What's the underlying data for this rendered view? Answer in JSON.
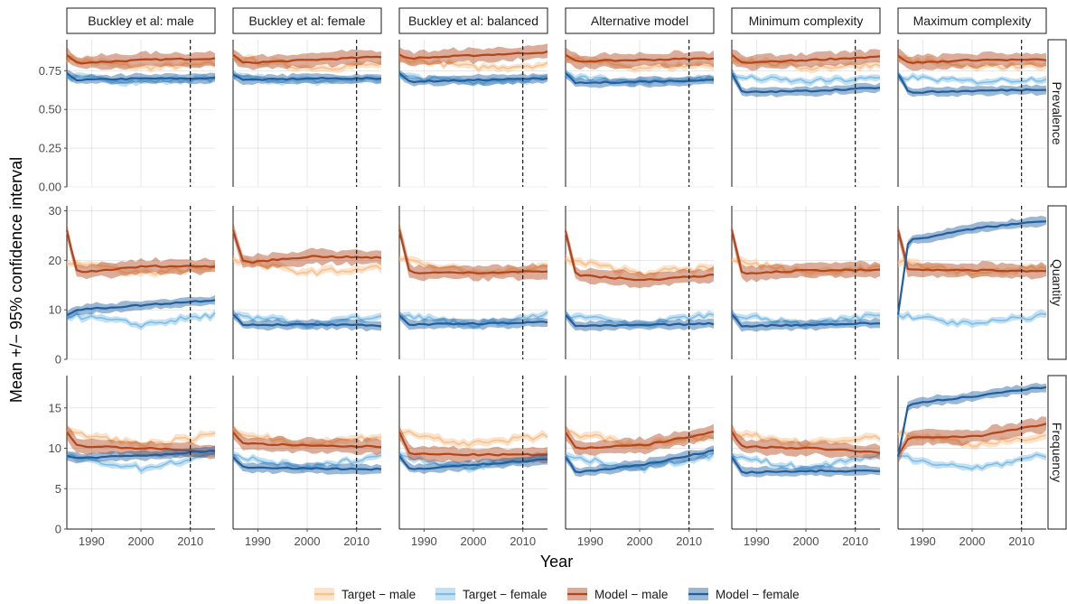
{
  "figure": {
    "ylabel": "Mean +/− 95% confidence interval",
    "xlabel": "Year"
  },
  "colors": {
    "target_male": "#f9c08b",
    "target_female": "#7dbde6",
    "model_male": "#b2461a",
    "model_female": "#1f5f9f",
    "grid": "#d9d9d9",
    "dashed": "#1a1a1a"
  },
  "chart_data": {
    "type": "line",
    "layout": "facet grid (3 rows x 6 columns)",
    "x_range": [
      1985,
      2015
    ],
    "x_ticks": [
      1990,
      2000,
      2010
    ],
    "vline_x": 2010,
    "columns": [
      "Buckley et al: male",
      "Buckley et al: female",
      "Buckley et al: balanced",
      "Alternative model",
      "Minimum complexity",
      "Maximum complexity"
    ],
    "rows": [
      {
        "name": "Prevalence",
        "ylim": [
          0,
          0.95
        ],
        "yticks": [
          0.0,
          0.25,
          0.5,
          0.75
        ],
        "ytick_labels": [
          "0.00",
          "0.25",
          "0.50",
          "0.75"
        ]
      },
      {
        "name": "Quantity",
        "ylim": [
          0,
          31
        ],
        "yticks": [
          0,
          10,
          20,
          30
        ],
        "ytick_labels": [
          "0",
          "10",
          "20",
          "30"
        ]
      },
      {
        "name": "Frequency",
        "ylim": [
          0,
          19
        ],
        "yticks": [
          0,
          5,
          10,
          15
        ],
        "ytick_labels": [
          "0",
          "5",
          "10",
          "15"
        ]
      }
    ],
    "legend": {
      "position": "bottom",
      "entries": [
        {
          "key": "target_male",
          "label": "Target − male"
        },
        {
          "key": "target_female",
          "label": "Target − female"
        },
        {
          "key": "model_male",
          "label": "Model − male"
        },
        {
          "key": "model_female",
          "label": "Model − female"
        }
      ]
    },
    "target": {
      "Prevalence": {
        "male_start": 0.83,
        "male_mid": 0.77,
        "male_end": 0.79,
        "female_start": 0.71,
        "female_mid": 0.68,
        "female_end": 0.7
      },
      "Quantity": {
        "male_start": 20.0,
        "male_mid": 17.5,
        "male_end": 18.5,
        "female_start": 9.0,
        "female_mid": 7.0,
        "female_end": 9.0
      },
      "Frequency": {
        "male_start": 12.0,
        "male_mid": 10.5,
        "male_end": 11.5,
        "female_start": 9.0,
        "female_mid": 7.5,
        "female_end": 9.2
      }
    },
    "model": [
      {
        "panel": "Buckley et al: male",
        "Prevalence": {
          "male": [
            0.85,
            0.8,
            0.82,
            0.83
          ],
          "female": [
            0.73,
            0.69,
            0.7,
            0.7
          ]
        },
        "Quantity": {
          "male": [
            26.0,
            17.5,
            18.8,
            18.8
          ],
          "female": [
            9.0,
            10.0,
            11.0,
            12.0
          ]
        },
        "Frequency": {
          "male": [
            12.0,
            10.3,
            10.0,
            9.6
          ],
          "female": [
            9.0,
            8.8,
            9.1,
            9.7
          ]
        }
      },
      {
        "panel": "Buckley et al: female",
        "Prevalence": {
          "male": [
            0.85,
            0.8,
            0.82,
            0.84
          ],
          "female": [
            0.73,
            0.69,
            0.7,
            0.7
          ]
        },
        "Quantity": {
          "male": [
            26.0,
            19.5,
            20.8,
            20.5
          ],
          "female": [
            9.0,
            7.0,
            7.0,
            6.8
          ]
        },
        "Frequency": {
          "male": [
            12.0,
            10.6,
            10.3,
            10.2
          ],
          "female": [
            9.0,
            7.6,
            7.5,
            7.4
          ]
        }
      },
      {
        "panel": "Buckley et al: balanced",
        "Prevalence": {
          "male": [
            0.85,
            0.83,
            0.85,
            0.87
          ],
          "female": [
            0.73,
            0.68,
            0.69,
            0.7
          ]
        },
        "Quantity": {
          "male": [
            26.0,
            17.5,
            17.5,
            17.8
          ],
          "female": [
            9.0,
            7.0,
            7.2,
            7.5
          ]
        },
        "Frequency": {
          "male": [
            12.0,
            9.3,
            9.2,
            9.2
          ],
          "female": [
            9.0,
            7.4,
            8.0,
            8.6
          ]
        }
      },
      {
        "panel": "Alternative model",
        "Prevalence": {
          "male": [
            0.85,
            0.81,
            0.82,
            0.83
          ],
          "female": [
            0.73,
            0.67,
            0.68,
            0.69
          ]
        },
        "Quantity": {
          "male": [
            26.0,
            17.0,
            16.0,
            17.0
          ],
          "female": [
            9.0,
            6.7,
            6.9,
            7.2
          ]
        },
        "Frequency": {
          "male": [
            12.0,
            10.0,
            10.4,
            12.0
          ],
          "female": [
            9.0,
            7.0,
            8.0,
            9.7
          ]
        }
      },
      {
        "panel": "Minimum complexity",
        "Prevalence": {
          "male": [
            0.85,
            0.8,
            0.82,
            0.84
          ],
          "female": [
            0.73,
            0.61,
            0.62,
            0.64
          ]
        },
        "Quantity": {
          "male": [
            26.0,
            17.3,
            18.0,
            18.0
          ],
          "female": [
            9.0,
            6.7,
            7.0,
            7.3
          ]
        },
        "Frequency": {
          "male": [
            12.0,
            10.2,
            10.0,
            9.5
          ],
          "female": [
            9.0,
            7.0,
            7.2,
            7.2
          ]
        }
      },
      {
        "panel": "Maximum complexity",
        "Prevalence": {
          "male": [
            0.85,
            0.8,
            0.82,
            0.82
          ],
          "female": [
            0.73,
            0.61,
            0.62,
            0.63
          ]
        },
        "Quantity": {
          "male": [
            26.0,
            18.0,
            18.0,
            17.8
          ],
          "female": [
            9.0,
            24.0,
            26.5,
            28.0
          ]
        },
        "Frequency": {
          "male": [
            9.0,
            11.3,
            11.5,
            13.0
          ],
          "female": [
            9.0,
            15.5,
            16.5,
            17.6
          ]
        }
      }
    ]
  }
}
